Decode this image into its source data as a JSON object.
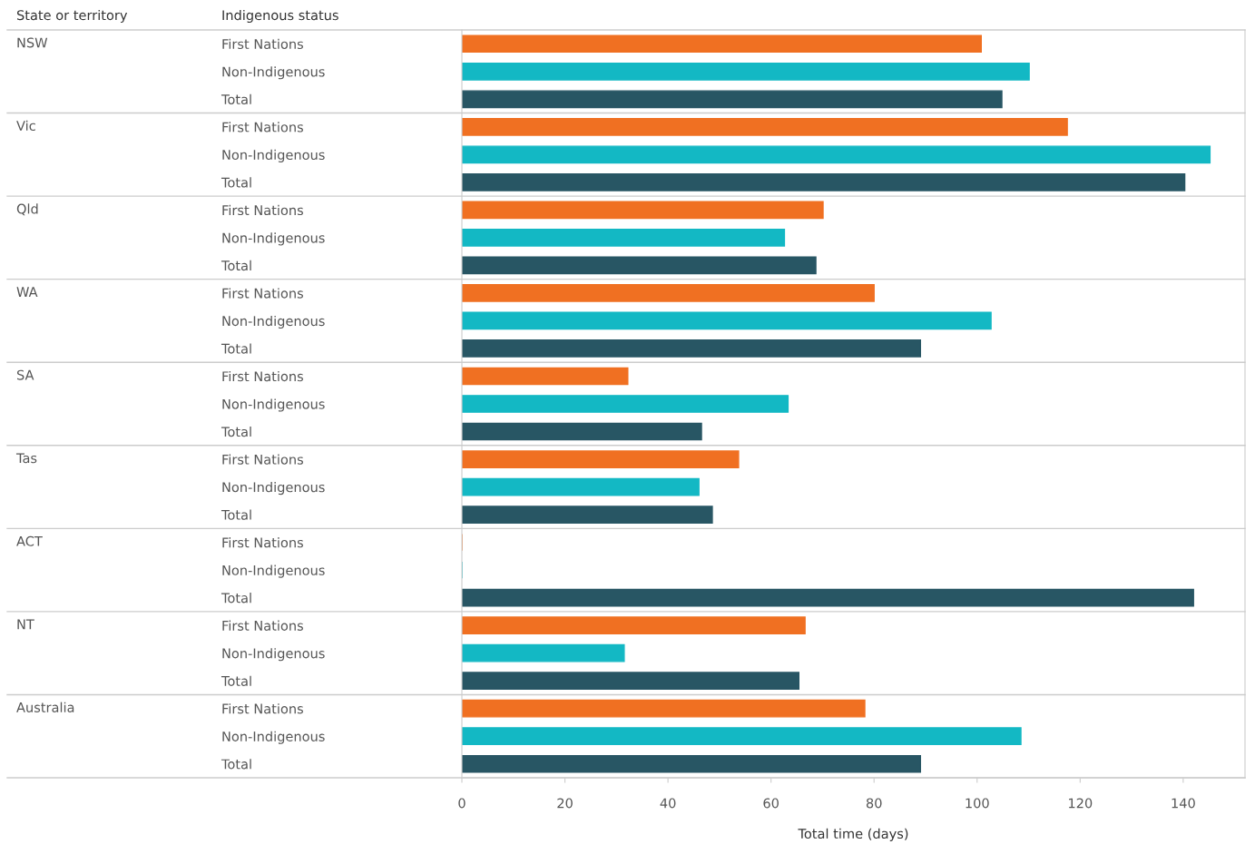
{
  "chart_data": {
    "type": "bar",
    "orientation": "horizontal",
    "xlabel": "Total time (days)",
    "annotations": [
      "State or territory",
      "Indigenous status",
      "NSW",
      "Vic",
      "Qld",
      "WA",
      "SA",
      "Tas",
      "ACT",
      "NT",
      "Australia"
    ],
    "categories": [
      "First Nations",
      "Non-Indigenous",
      "Total",
      "First Nations",
      "Non-Indigenous",
      "Total",
      "First Nations",
      "Non-Indigenous",
      "Total",
      "First Nations",
      "Non-Indigenous",
      "Total",
      "First Nations",
      "Non-Indigenous",
      "Total",
      "First Nations",
      "Non-Indigenous",
      "Total",
      "First Nations",
      "Non-Indigenous",
      "Total",
      "First Nations",
      "Non-Indigenous",
      "Total",
      "First Nations",
      "Non-Indigenous",
      "Total"
    ],
    "values": [
      100.8,
      110.1,
      104.8,
      117.5,
      145.2,
      140.3,
      70.1,
      62.6,
      68.7,
      80.0,
      102.7,
      89.0,
      32.2,
      63.3,
      46.5,
      53.7,
      46.0,
      48.6,
      0,
      0,
      142.0,
      66.6,
      31.5,
      65.4,
      78.2,
      108.5,
      89.0
    ],
    "colors": [
      "#f07022",
      "#13b8c4",
      "#285664",
      "#f07022",
      "#13b8c4",
      "#285664",
      "#f07022",
      "#13b8c4",
      "#285664",
      "#f07022",
      "#13b8c4",
      "#285664",
      "#f07022",
      "#13b8c4",
      "#285664",
      "#f07022",
      "#13b8c4",
      "#285664",
      "#f07022",
      "#13b8c4",
      "#285664",
      "#f07022",
      "#13b8c4",
      "#285664",
      "#f07022",
      "#13b8c4",
      "#285664"
    ],
    "xlim": [
      0,
      152
    ],
    "xticks": [
      0,
      20,
      40,
      60,
      80,
      100,
      120,
      140
    ],
    "grid": false
  }
}
